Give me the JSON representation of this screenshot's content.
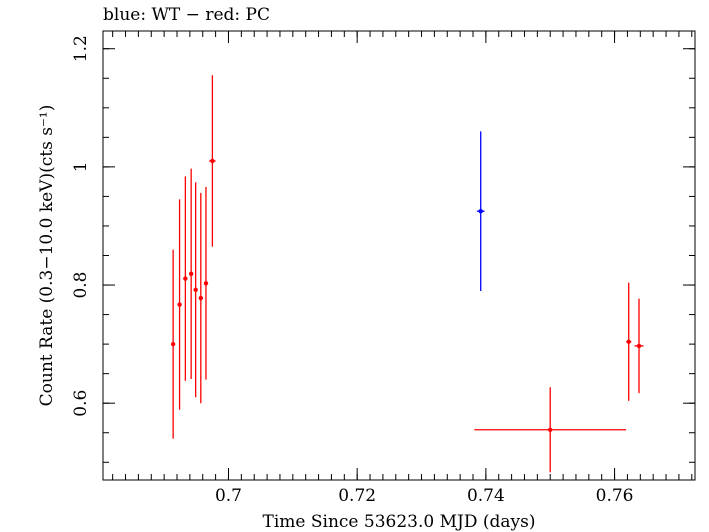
{
  "chart_data": {
    "type": "scatter",
    "title": "blue: WT − red: PC",
    "xlabel": "Time Since 53623.0 MJD (days)",
    "ylabel": "Count Rate (0.3−10.0 keV)(cts s⁻¹)",
    "xlim": [
      0.6805,
      0.7725
    ],
    "ylim": [
      0.47,
      1.23
    ],
    "x_ticks": [
      {
        "value": 0.7,
        "label": "0.7"
      },
      {
        "value": 0.72,
        "label": "0.72"
      },
      {
        "value": 0.74,
        "label": "0.74"
      },
      {
        "value": 0.76,
        "label": "0.76"
      }
    ],
    "y_ticks": [
      {
        "value": 0.6,
        "label": "0.6"
      },
      {
        "value": 0.8,
        "label": "0.8"
      },
      {
        "value": 1.0,
        "label": "1"
      },
      {
        "value": 1.2,
        "label": "1.2"
      }
    ],
    "x_minor_step": 0.002,
    "y_minor_step": 0.05,
    "grid": false,
    "series": [
      {
        "name": "WT",
        "color": "#0000ff",
        "points": [
          {
            "x": 0.7392,
            "xerr": 0.0006,
            "y": 0.925,
            "yerr_low": 0.135,
            "yerr_high": 0.135
          }
        ]
      },
      {
        "name": "PC",
        "color": "#ff0000",
        "points": [
          {
            "x": 0.6914,
            "xerr": 0.0003,
            "y": 0.7,
            "yerr_low": 0.16,
            "yerr_high": 0.16
          },
          {
            "x": 0.6924,
            "xerr": 0.0003,
            "y": 0.767,
            "yerr_low": 0.178,
            "yerr_high": 0.178
          },
          {
            "x": 0.6933,
            "xerr": 0.0003,
            "y": 0.811,
            "yerr_low": 0.173,
            "yerr_high": 0.173
          },
          {
            "x": 0.6942,
            "xerr": 0.0003,
            "y": 0.819,
            "yerr_low": 0.178,
            "yerr_high": 0.178
          },
          {
            "x": 0.6949,
            "xerr": 0.0003,
            "y": 0.792,
            "yerr_low": 0.182,
            "yerr_high": 0.182
          },
          {
            "x": 0.6957,
            "xerr": 0.0003,
            "y": 0.778,
            "yerr_low": 0.178,
            "yerr_high": 0.178
          },
          {
            "x": 0.6965,
            "xerr": 0.0003,
            "y": 0.803,
            "yerr_low": 0.163,
            "yerr_high": 0.163
          },
          {
            "x": 0.6975,
            "xerr": 0.0005,
            "y": 1.01,
            "yerr_low": 0.145,
            "yerr_high": 0.145
          },
          {
            "x": 0.75,
            "xerr": 0.0118,
            "y": 0.555,
            "yerr_low": 0.072,
            "yerr_high": 0.072
          },
          {
            "x": 0.7622,
            "xerr": 0.0004,
            "y": 0.704,
            "yerr_low": 0.1,
            "yerr_high": 0.1
          },
          {
            "x": 0.7638,
            "xerr": 0.0007,
            "y": 0.697,
            "yerr_low": 0.08,
            "yerr_high": 0.08
          }
        ]
      }
    ]
  }
}
